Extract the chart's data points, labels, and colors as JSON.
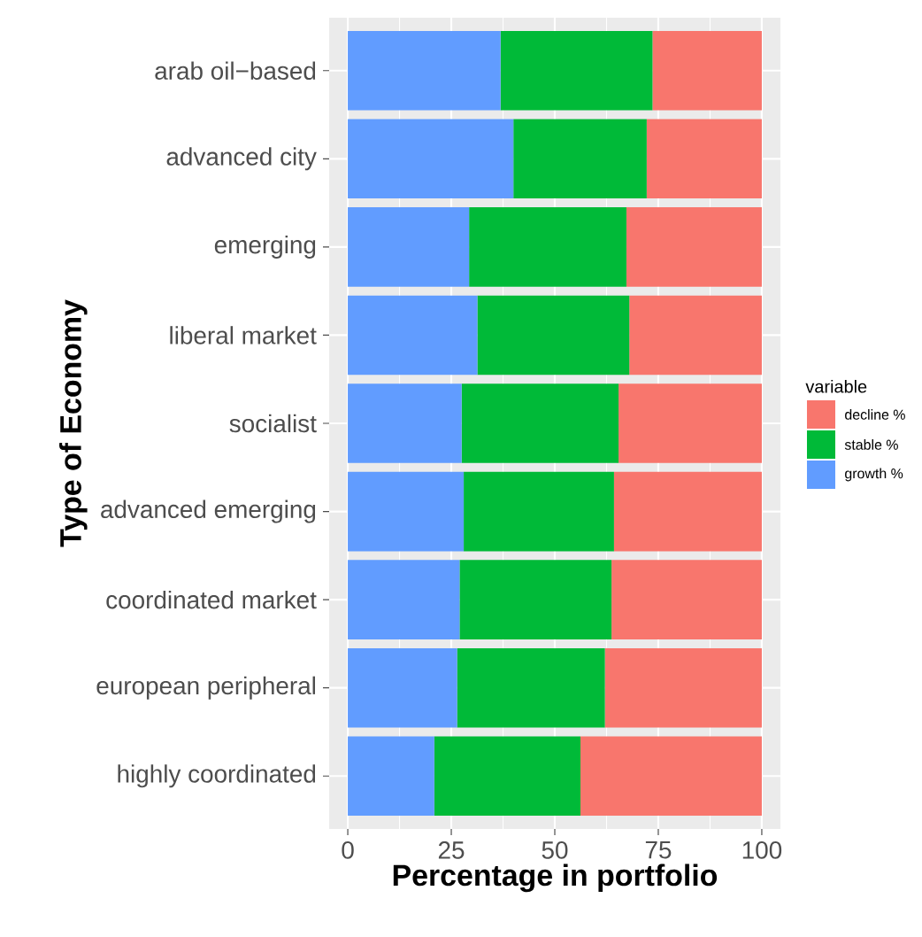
{
  "chart_data": {
    "type": "bar",
    "orientation": "horizontal",
    "stacked": true,
    "xlabel": "Percentage in portfolio",
    "ylabel": "Type of Economy",
    "legend_title": "variable",
    "categories": [
      "arab oil−based",
      "advanced city",
      "emerging",
      "liberal market",
      "socialist",
      "advanced emerging",
      "coordinated market",
      "european peripheral",
      "highly coordinated"
    ],
    "series": [
      {
        "name": "growth %",
        "color": "#619cff",
        "values": [
          36.9,
          40.0,
          29.3,
          31.3,
          27.5,
          28.0,
          27.0,
          26.4,
          20.9
        ]
      },
      {
        "name": "stable %",
        "color": "#00ba38",
        "values": [
          36.7,
          32.2,
          38.0,
          36.7,
          37.9,
          36.3,
          36.7,
          35.7,
          35.3
        ]
      },
      {
        "name": "decline %",
        "color": "#f8766d",
        "values": [
          26.4,
          27.8,
          32.7,
          32.0,
          34.6,
          35.7,
          36.3,
          37.9,
          43.8
        ]
      }
    ],
    "xlim": [
      0,
      100
    ],
    "xticks": [
      0,
      25,
      50,
      75,
      100
    ],
    "grid": true,
    "legend": "right"
  }
}
